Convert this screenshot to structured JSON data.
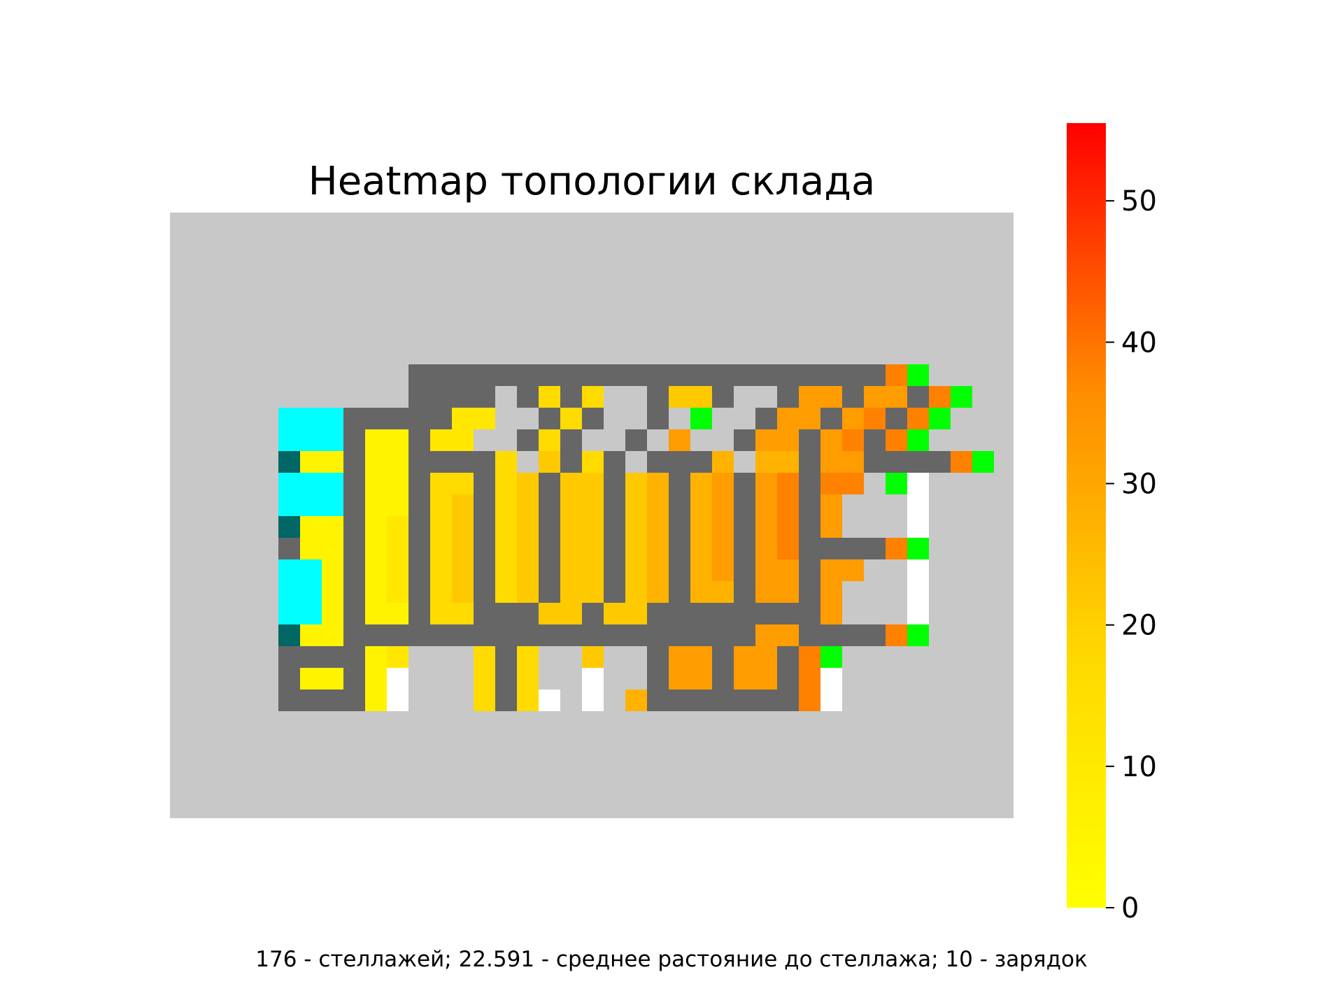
{
  "chart_data": {
    "type": "heatmap",
    "title": "Heatmap топологии склада",
    "caption": "176 - стеллажей; 22.591 - среднее растояние до стеллажа; 10 - зарядок",
    "grid": false,
    "colorbar": {
      "range": [
        0,
        55.5
      ],
      "ticks": [
        0,
        10,
        20,
        30,
        40,
        50
      ],
      "tick_labels": [
        "0",
        "10",
        "20",
        "30",
        "40",
        "50"
      ],
      "colors": [
        "#ffff00",
        "#ffd700",
        "#ff8c00",
        "#ff0000"
      ],
      "placement": "right"
    },
    "legend_codes": {
      ".": "outside / empty (#c8c8c8)",
      "G": "aisle (#666666)",
      "W": "white cell (#ffffff)",
      "C": "cyan zone (#00ffff)",
      "D": "dark teal cell (#006666)",
      "N": "green cell / charger (#00ff00)",
      "0-9": "rack cell, value = code * 5.5 on the colorbar scale"
    },
    "colors": {
      "background": "#c8c8c8",
      "aisle": "#666666",
      "white": "#ffffff",
      "cyan": "#00ffff",
      "teal": "#006666",
      "green": "#00ff00"
    },
    "grid_rows": [
      "                                       ",
      "                                       ",
      "                                       ",
      "                                       ",
      "                                       ",
      "                                       ",
      "                                       ",
      "           GGGGGGGGGGGGGGGGGGGGGG7N    ",
      "           GGGG G3G3  G44G  G66G66G7N    ",
      "     CCCGGGGG22  G3G  G N  G66G67G7N    ",
      "     CCCG11G22  G3G  G 6  G66G67G7N    ",
      "     D11G11GGGG3 4G3G GGG5 55G66GGGG7N    ",
      "     CCCG11G33G34G44G45G56G67G77 NW    ",
      "     CCCG11G34G34G44G45G56G67G6   W    ",
      "     D11G12G34G34G44G45G56G67G6   W    ",
      "     G11G12G34G34G44G45G56G67GGGG7N    ",
      "     CC1G12G34G34G44G45G56G66G66  W    ",
      "     CC1G12G34G34G44G45G55G66G6   W    ",
      "     CC1G11G33GGG44G44GGGGGGGG6   W    ",
      "     D11GGGGGGGGGGGGGGGGGGG66GGGG7N    ",
      "     GGGG12   3G3  4  G66G66G7N    ",
      "     G11G1W   3G3  W  G66G66G7W    ",
      "     GGGG1W   3G3W W 5GGGGGGG7W    "
    ]
  }
}
